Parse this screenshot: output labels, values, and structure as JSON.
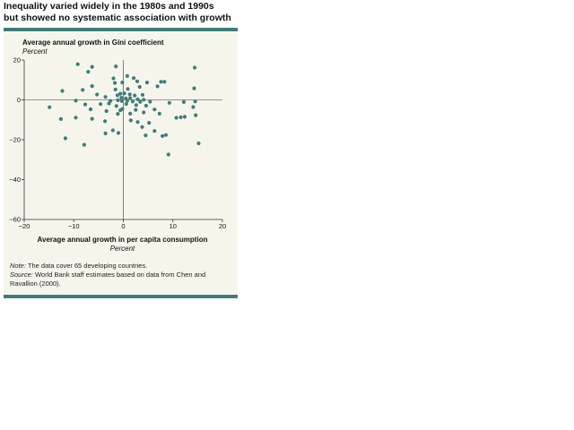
{
  "figure": {
    "title_line1": "Inequality varied widely in the 1980s and 1990s",
    "title_line2": "but showed no systematic association with growth"
  },
  "notes": {
    "note_label": "Note:",
    "note_text": "The data cover 65 developing countries.",
    "source_label": "Source:",
    "source_text": "World Bank staff estimates based on data from Chen and Ravallion (2000)."
  },
  "colors": {
    "accent": "#3e7d7a",
    "panel": "#f6f5ec",
    "marker": "#3e7d7a"
  },
  "chart_data": {
    "type": "scatter",
    "title": "Inequality varied widely in the 1980s and 1990s but showed no systematic association with growth",
    "xlabel": "Average annual growth in per capita consumption",
    "xunit": "Percent",
    "ylabel": "Average annual growth in Gini coefficient",
    "yunit": "Percent",
    "xlim": [
      -20,
      20
    ],
    "ylim": [
      -60,
      20
    ],
    "xticks": [
      -20,
      -10,
      0,
      10,
      20
    ],
    "yticks": [
      20,
      0,
      -20,
      -40,
      -60
    ],
    "xtick_labels": [
      "−20",
      "−10",
      "0",
      "10",
      "20"
    ],
    "ytick_labels": [
      "20",
      "0",
      "−20",
      "−40",
      "−60"
    ],
    "grid": false,
    "legend": "none",
    "points": [
      [
        -9.2,
        17.9
      ],
      [
        -6.3,
        16.6
      ],
      [
        -1.5,
        16.8
      ],
      [
        14.4,
        16.2
      ],
      [
        -7.1,
        14.1
      ],
      [
        0.8,
        12.0
      ],
      [
        -2.0,
        10.8
      ],
      [
        2.1,
        10.9
      ],
      [
        7.6,
        9.1
      ],
      [
        8.3,
        9.1
      ],
      [
        -1.7,
        8.5
      ],
      [
        -0.2,
        8.7
      ],
      [
        2.8,
        9.3
      ],
      [
        4.8,
        8.7
      ],
      [
        -6.3,
        6.9
      ],
      [
        -12.3,
        4.5
      ],
      [
        -8.2,
        5.0
      ],
      [
        -1.6,
        5.2
      ],
      [
        0.9,
        5.5
      ],
      [
        3.3,
        6.5
      ],
      [
        6.9,
        6.8
      ],
      [
        14.3,
        5.8
      ],
      [
        -5.3,
        2.7
      ],
      [
        -3.6,
        1.5
      ],
      [
        -1.2,
        2.3
      ],
      [
        -0.6,
        3.1
      ],
      [
        0.2,
        3.3
      ],
      [
        1.3,
        2.8
      ],
      [
        2.3,
        2.2
      ],
      [
        3.9,
        2.5
      ],
      [
        -0.4,
        1.1
      ],
      [
        0.5,
        0.7
      ],
      [
        1.4,
        0.9
      ],
      [
        2.9,
        0.3
      ],
      [
        4.1,
        0.1
      ],
      [
        -2.6,
        -0.5
      ],
      [
        -1.1,
        -0.2
      ],
      [
        -0.3,
        -0.6
      ],
      [
        0.8,
        -0.4
      ],
      [
        1.9,
        -0.8
      ],
      [
        3.4,
        -1.0
      ],
      [
        5.4,
        -0.9
      ],
      [
        -9.6,
        -0.4
      ],
      [
        -14.9,
        -3.7
      ],
      [
        -7.7,
        -2.3
      ],
      [
        -4.6,
        -2.1
      ],
      [
        -2.9,
        -1.8
      ],
      [
        -1.4,
        -3.1
      ],
      [
        0.6,
        -2.0
      ],
      [
        2.6,
        -2.6
      ],
      [
        4.6,
        -2.9
      ],
      [
        9.3,
        -1.5
      ],
      [
        12.2,
        -1.1
      ],
      [
        14.5,
        -0.8
      ],
      [
        -6.6,
        -4.7
      ],
      [
        -0.6,
        -5.2
      ],
      [
        -0.2,
        -4.6
      ],
      [
        2.5,
        -5.0
      ],
      [
        6.3,
        -4.8
      ],
      [
        14.1,
        -3.6
      ],
      [
        -3.4,
        -5.6
      ],
      [
        -1.1,
        -7.0
      ],
      [
        1.4,
        -6.9
      ],
      [
        4.1,
        -6.3
      ],
      [
        7.3,
        -6.9
      ],
      [
        -12.6,
        -9.6
      ],
      [
        -9.6,
        -8.9
      ],
      [
        -6.3,
        -9.5
      ],
      [
        -3.7,
        -10.7
      ],
      [
        1.5,
        -10.3
      ],
      [
        2.9,
        -11.1
      ],
      [
        5.2,
        -11.5
      ],
      [
        10.7,
        -9.0
      ],
      [
        11.6,
        -8.7
      ],
      [
        12.4,
        -8.5
      ],
      [
        14.6,
        -7.7
      ],
      [
        3.8,
        -13.6
      ],
      [
        -2.1,
        -15.3
      ],
      [
        -1.0,
        -16.6
      ],
      [
        6.3,
        -15.6
      ],
      [
        4.5,
        -17.8
      ],
      [
        8.6,
        -17.6
      ],
      [
        -11.7,
        -19.3
      ],
      [
        -3.6,
        -16.8
      ],
      [
        7.9,
        -18.1
      ],
      [
        -7.9,
        -22.5
      ],
      [
        15.2,
        -21.8
      ],
      [
        9.1,
        -27.4
      ]
    ]
  }
}
